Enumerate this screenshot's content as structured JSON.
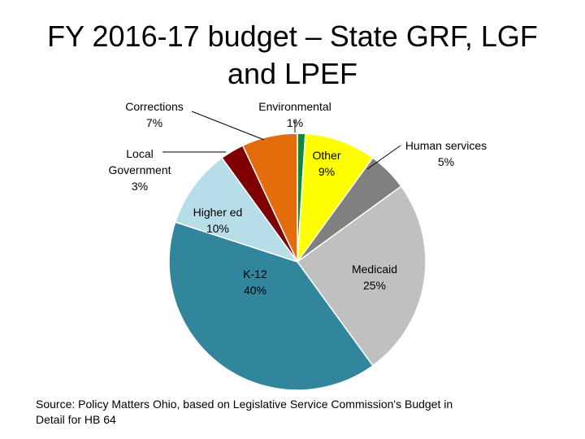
{
  "page": {
    "title_line1": "FY 2016-17 budget – State GRF, LGF",
    "title_line2": "and LPEF"
  },
  "chart_data": {
    "type": "pie",
    "title": "FY 2016-17 budget – State GRF, LGF and LPEF",
    "unit": "%",
    "start": "12 o'clock",
    "direction": "clockwise",
    "slices": [
      {
        "key": "environmental",
        "name": "Environmental",
        "value": 1,
        "label": "1%",
        "color": "#0c8a3c"
      },
      {
        "key": "other",
        "name": "Other",
        "value": 9,
        "label": "9%",
        "color": "#ffff00"
      },
      {
        "key": "human_services",
        "name": "Human services",
        "value": 5,
        "label": "5%",
        "color": "#808080"
      },
      {
        "key": "medicaid",
        "name": "Medicaid",
        "value": 25,
        "label": "25%",
        "color": "#c0c0c0"
      },
      {
        "key": "k12",
        "name": "K-12",
        "value": 40,
        "label": "40%",
        "color": "#31859c"
      },
      {
        "key": "higher_ed",
        "name": "Higher ed",
        "value": 10,
        "label": "10%",
        "color": "#b7dee8"
      },
      {
        "key": "local_government",
        "name": "Local Government",
        "value": 3,
        "label": "3%",
        "color": "#7f0000"
      },
      {
        "key": "corrections",
        "name": "Corrections",
        "value": 7,
        "label": "7%",
        "color": "#e46c0a"
      }
    ]
  },
  "footer": {
    "source_line1": "Source: Policy Matters Ohio, based on Legislative Service Commission's Budget in",
    "source_line2": "Detail for HB 64"
  }
}
